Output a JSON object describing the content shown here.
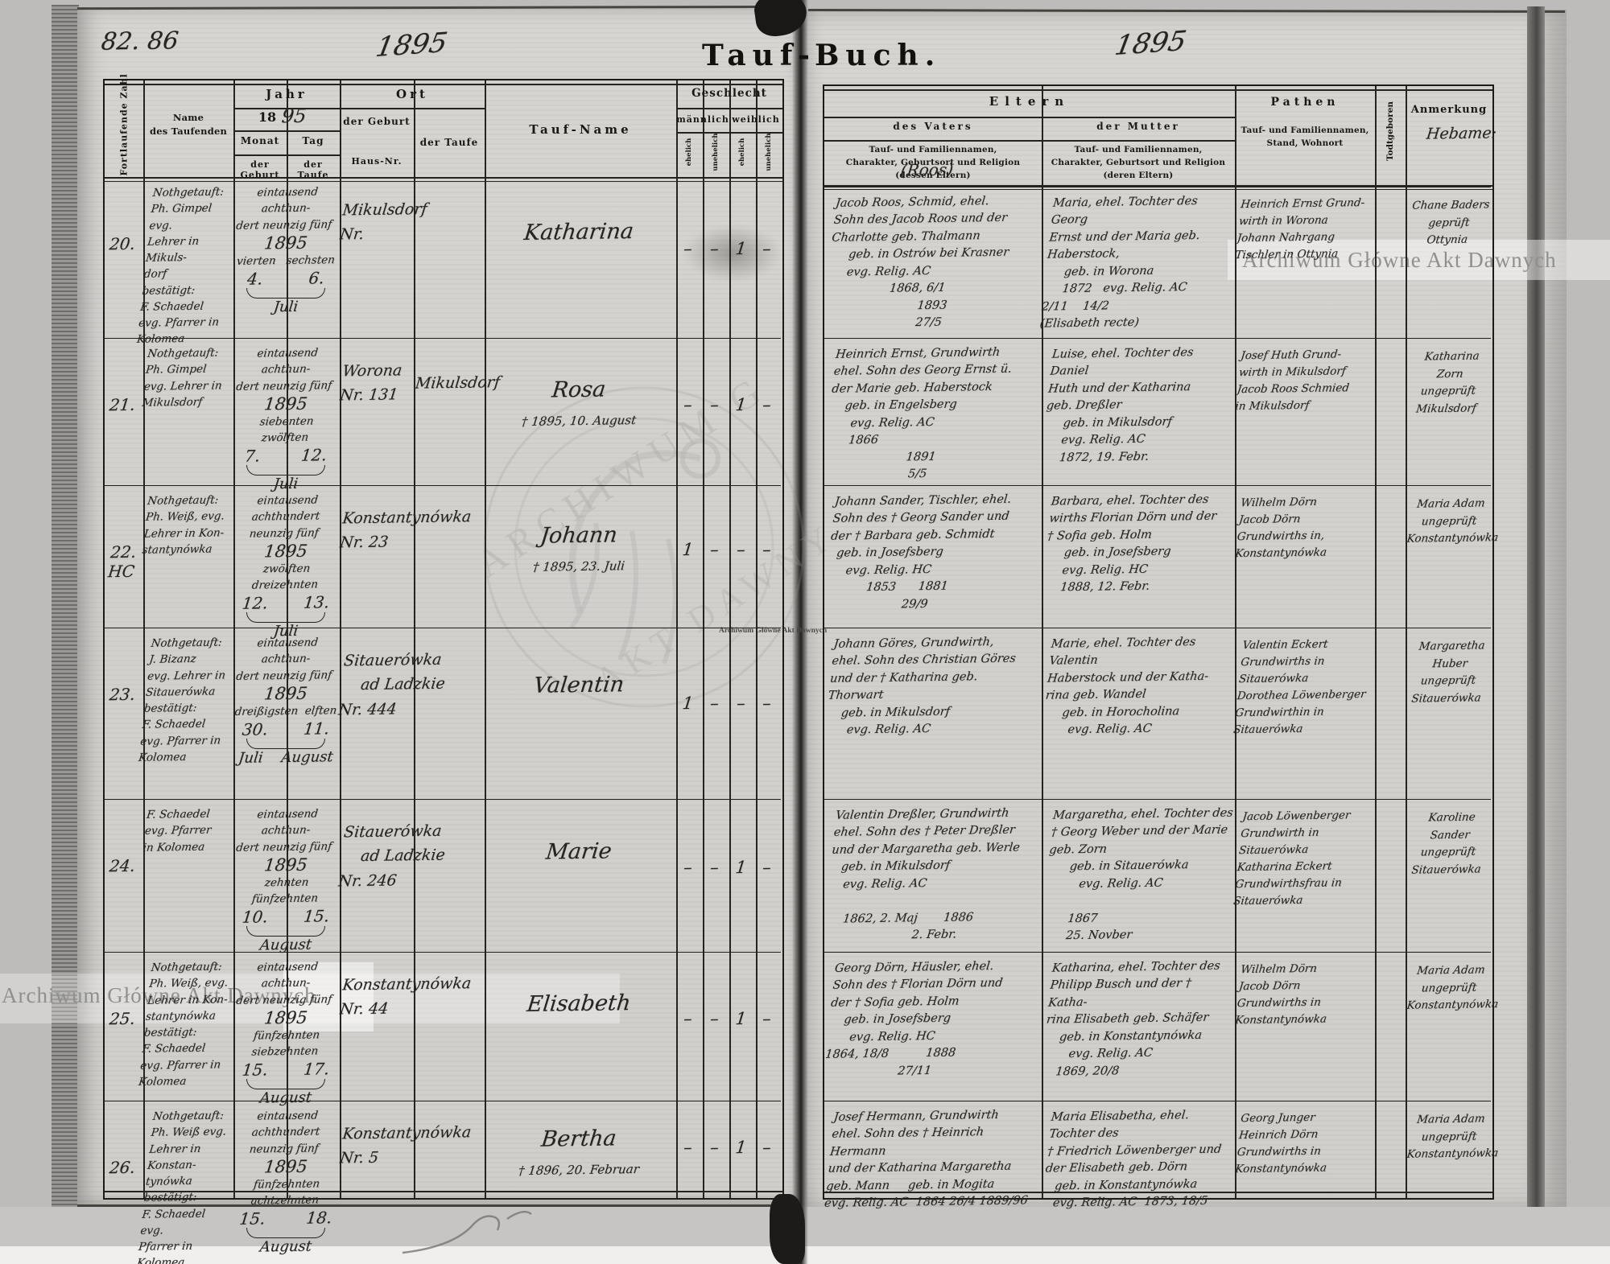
{
  "page": {
    "left_folio": "82. 86",
    "left_year": "1895",
    "right_year": "1895",
    "title_left": "Tauf-",
    "title_right": "Buch."
  },
  "headers_left": {
    "col_zahl": "Fortlaufende Zahl",
    "col_name": "Name\ndes Taufenden",
    "jahr": "Jahr",
    "jahr_printed": "18",
    "jahr_hand": "95",
    "monat": "Monat",
    "tag": "Tag",
    "der_geburt": "der Geburt",
    "der_taufe": "der Taufe",
    "ort": "Ort",
    "ort_geburt": "der Geburt",
    "haus_nr": "Haus-Nr.",
    "ort_taufe": "der Taufe",
    "tauf_name": "Tauf-Name",
    "geschlecht": "Geschlecht",
    "maennlich": "männlich",
    "weiblich": "weiblich",
    "ehelich": "ehelich",
    "unehelich": "unehelich"
  },
  "headers_right": {
    "eltern": "Eltern",
    "des_vaters": "des Vaters",
    "der_mutter": "der Mutter",
    "vater_desc": "Tauf- und Familiennamen,\nCharakter, Geburtsort und Religion\n(dessen Eltern)",
    "mutter_desc": "Tauf- und Familiennamen,\nCharakter, Geburtsort und Religion\n(deren Eltern)",
    "vater_note": "(Roos)",
    "pathen": "Pathen",
    "pathen_desc": "Tauf- und Familiennamen,\nStand, Wohnort",
    "todtgeboren": "Todtgeboren",
    "anmerkung": "Anmerkung",
    "hebamme": "Hebame:"
  },
  "watermarks": {
    "top_right": "Archiwum Główne Akt Dawnych",
    "bottom_left": "Archiwum Główne Akt Dawnych",
    "small_center": "Archiwum Główne Akt Dawnych",
    "seal_line1": "ARCHIWUM G",
    "seal_line2": "AKT DAWNYCH"
  },
  "rows": [
    {
      "nr": "20.",
      "taufender": "Nothgetauft:\nPh. Gimpel evg.\nLehrer in Mikuls-\ndorf\nbestätigt:\nF. Schaedel\nevg. Pfarrer in\nKolomea",
      "date_words": "eintausend achthun-\ndert neunzig fünf",
      "date_year": "1895",
      "date_daywords": "vierten   sechsten",
      "date_days": "4.         6.",
      "date_months": "Juli",
      "ort_geburt": "Mikulsdorf\nNr.",
      "ort_taufe": "",
      "name": "Katharina",
      "name_note": "",
      "sex1": "–",
      "sex2": "–",
      "sex3": "1",
      "sex4": "–",
      "vater": "Jacob Roos, Schmid, ehel.\nSohn des Jacob Roos und der\nCharlotte geb. Thalmann\n     geb. in Ostrów bei Krasner\n     evg. Relig. AC\n                 1868, 6/1\n                         1893\n                         27/5",
      "mutter": "Maria, ehel. Tochter des Georg\nErnst und der Maria geb.\nHaberstock,\n     geb. in Worona\n     1872   evg. Relig. AC\n2/11    14/2\n(Elisabeth recte)",
      "pathen": "Heinrich Ernst Grund-\nwirth in Worona\nJohann Nahrgang\nTischler in Ottynia",
      "anmerkung": "Chane Baders\ngeprüft\nOttynia"
    },
    {
      "nr": "21.",
      "taufender": "Nothgetauft:\nPh. Gimpel\nevg. Lehrer in\nMikulsdorf",
      "date_words": "eintausend achthun-\ndert neunzig fünf",
      "date_year": "1895",
      "date_daywords": "siebenten  zwölften",
      "date_days": "7.        12.",
      "date_months": "Juli",
      "ort_geburt": "Worona\nNr. 131",
      "ort_taufe": "Mikulsdorf",
      "name": "Rosa",
      "name_note": "† 1895, 10. August",
      "sex1": "–",
      "sex2": "–",
      "sex3": "1",
      "sex4": "–",
      "vater": "Heinrich Ernst, Grundwirth\nehel. Sohn des Georg Ernst ü.\nder Marie geb. Haberstock\n    geb. in Engelsberg\n      evg. Relig. AC\n      1866\n                      1891\n                       5/5",
      "mutter": "Luise, ehel. Tochter des Daniel\nHuth und der Katharina\ngeb. Dreßler\n     geb. in Mikulsdorf\n     evg. Relig. AC\n     1872, 19. Febr.",
      "pathen": "Josef Huth Grund-\nwirth in Mikulsdorf\nJacob Roos Schmied\nin Mikulsdorf",
      "anmerkung": "Katharina\nZorn\nungeprüft\nMikulsdorf"
    },
    {
      "nr": "22.\nHC",
      "taufender": "Nothgetauft:\nPh. Weiß, evg.\nLehrer in Kon-\nstantynówka",
      "date_words": "eintausend achthundert\nneunzig fünf",
      "date_year": "1895",
      "date_daywords": "zwölften dreizehnten",
      "date_days": "12.       13.",
      "date_months": "Juli",
      "ort_geburt": "Konstantynówka\nNr. 23",
      "ort_taufe": "",
      "name": "Johann",
      "name_note": "† 1895, 23. Juli",
      "sex1": "1",
      "sex2": "–",
      "sex3": "–",
      "sex4": "–",
      "vater": "Johann Sander, Tischler, ehel.\nSohn des † Georg Sander und\nder † Barbara geb. Schmidt\n  geb. in Josefsberg\n     evg. Relig. HC\n           1853      1881\n                     29/9",
      "mutter": "Barbara, ehel. Tochter des\nwirths Florian Dörn und der\n† Sofia geb. Holm\n     geb. in Josefsberg\n     evg. Relig. HC\n     1888, 12. Febr.",
      "pathen": "Wilhelm Dörn\nJacob Dörn\nGrundwirths in,\nKonstantynówka",
      "anmerkung": "Maria Adam\nungeprüft\nKonstantynówka"
    },
    {
      "nr": "23.",
      "taufender": "Nothgetauft:\nJ. Bizanz\nevg. Lehrer in\nSitauerówka\nbestätigt:\nF. Schaedel\nevg. Pfarrer in\nKolomea",
      "date_words": "eintausend achthun-\ndert neunzig fünf",
      "date_year": "1895",
      "date_daywords": "dreißigsten  elften",
      "date_days": "30.       11.",
      "date_months": "Juli    August",
      "ort_geburt": "Sitauerówka\n    ad Ladzkie\nNr. 444",
      "ort_taufe": "",
      "name": "Valentin",
      "name_note": "",
      "sex1": "1",
      "sex2": "–",
      "sex3": "–",
      "sex4": "–",
      "vater": "Johann Göres, Grundwirth,\nehel. Sohn des Christian Göres\nund der † Katharina geb.\nThorwart\n    geb. in Mikulsdorf\n      evg. Relig. AC",
      "mutter": "Marie, ehel. Tochter des Valentin\nHaberstock und der Katha-\nrina geb. Wandel\n     geb. in Horocholina\n       evg. Relig. AC",
      "pathen": "Valentin Eckert\nGrundwirths in Sitauerówka\nDorothea Löwenberger\nGrundwirthin in Sitauerówka",
      "anmerkung": "Margaretha\nHuber\nungeprüft\nSitauerówka"
    },
    {
      "nr": "24.",
      "taufender": "F. Schaedel\nevg. Pfarrer\nin Kolomea",
      "date_words": "eintausend achthun-\ndert neunzig fünf",
      "date_year": "1895",
      "date_daywords": "zehnten fünfzehnten",
      "date_days": "10.       15.",
      "date_months": "August",
      "ort_geburt": "Sitauerówka\n    ad Ladzkie\nNr. 246",
      "ort_taufe": "",
      "name": "Marie",
      "name_note": "",
      "sex1": "–",
      "sex2": "–",
      "sex3": "1",
      "sex4": "–",
      "vater": "Valentin Dreßler, Grundwirth\nehel. Sohn des † Peter Dreßler\nund der Margaretha geb. Werle\n   geb. in Mikulsdorf\n    evg. Relig. AC\n\n     1862, 2. Maj       1886\n                        2. Febr.",
      "mutter": "Margaretha, ehel. Tochter des\n† Georg Weber und der Marie\ngeb. Zorn\n      geb. in Sitauerówka\n         evg. Relig. AC\n\n       1867\n       25. Novber",
      "pathen": "Jacob Löwenberger\nGrundwirth in Sitauerówka\nKatharina Eckert\nGrundwirthsfrau in\nSitauerówka",
      "anmerkung": "Karoline\nSander\nungeprüft\nSitauerówka"
    },
    {
      "nr": "25.",
      "taufender": "Nothgetauft:\nPh. Weiß, evg.\nLehrer in Kon-\nstantynówka\nbestätigt:\nF. Schaedel\nevg. Pfarrer in\nKolomea",
      "date_words": "eintausend achthun-\ndert neunzig fünf",
      "date_year": "1895",
      "date_daywords": "fünfzehnten siebzehnten",
      "date_days": "15.       17.",
      "date_months": "August",
      "ort_geburt": "Konstantynówka\nNr. 44",
      "ort_taufe": "",
      "name": "Elisabeth",
      "name_note": "",
      "sex1": "–",
      "sex2": "–",
      "sex3": "1",
      "sex4": "–",
      "vater": "Georg Dörn, Häusler, ehel.\nSohn des † Florian Dörn und\nder † Sofia geb. Holm\n    geb. in Josefsberg\n      evg. Relig. HC\n1864, 18/8          1888\n                    27/11",
      "mutter": "Katharina, ehel. Tochter des\nPhilipp Busch und der † Katha-\nrina Elisabeth geb. Schäfer\n    geb. in Konstantynówka\n       evg. Relig. AC\n    1869, 20/8",
      "pathen": "Wilhelm Dörn\nJacob Dörn\nGrundwirths in\nKonstantynówka",
      "anmerkung": "Maria Adam\nungeprüft\nKonstantynówka"
    },
    {
      "nr": "26.",
      "taufender": "Nothgetauft:\nPh. Weiß evg.\nLehrer in Konstan-\ntynówka\nbestätigt:\nF. Schaedel evg.\nPfarrer in Kolomea",
      "date_words": "eintausend achthundert\nneunzig fünf",
      "date_year": "1895",
      "date_daywords": "fünfzehnten achtzehnten",
      "date_days": "15.        18.",
      "date_months": "August",
      "ort_geburt": "Konstantynówka\nNr. 5",
      "ort_taufe": "",
      "name": "Bertha",
      "name_note": "† 1896, 20. Februar",
      "sex1": "–",
      "sex2": "–",
      "sex3": "1",
      "sex4": "–",
      "vater": "Josef Hermann, Grundwirth\nehel. Sohn des † Heinrich Hermann\nund der Katharina Margaretha\ngeb. Mann     geb. in Mogita\nevg. Relig. AC  1864 26/4 1889/96",
      "mutter": "Maria Elisabetha, ehel. Tochter des\n† Friedrich Löwenberger und\nder Elisabeth geb. Dörn\n   geb. in Konstantynówka\n   evg. Relig. AC  1873, 18/5",
      "pathen": "Georg Junger\nHeinrich Dörn\nGrundwirths in\nKonstantynówka",
      "anmerkung": "Maria Adam\nungeprüft\nKonstantynówka"
    }
  ]
}
